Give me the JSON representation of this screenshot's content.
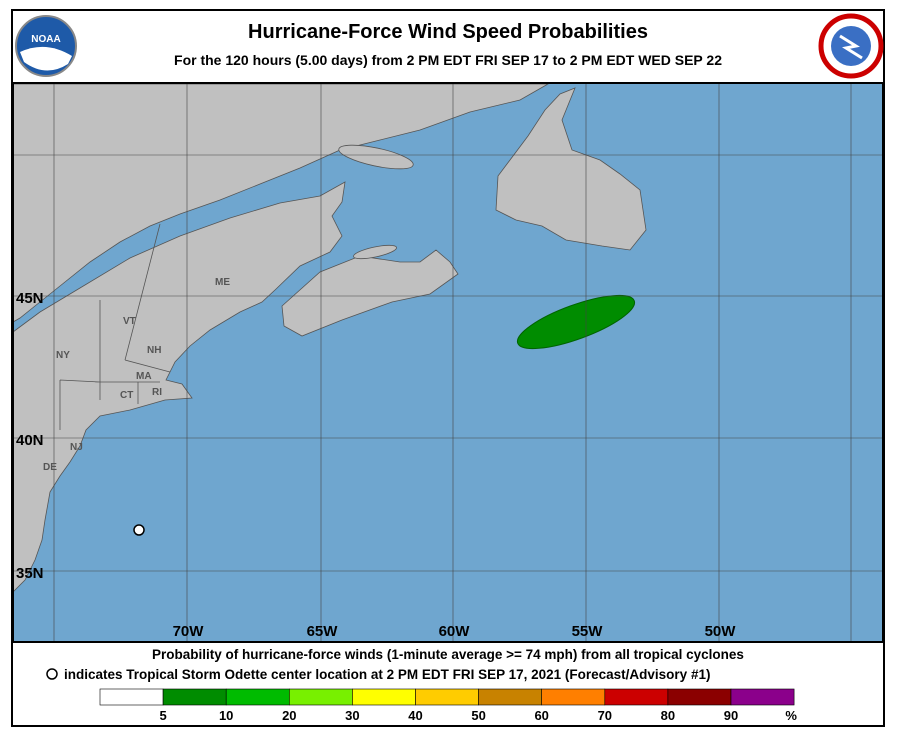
{
  "header": {
    "title": "Hurricane-Force Wind Speed Probabilities",
    "subtitle": "For the 120 hours (5.00 days) from 2 PM EDT FRI SEP 17 to 2 PM EDT WED SEP 22",
    "logo_left": "NOAA"
  },
  "map": {
    "lat_labels": [
      "45N",
      "40N",
      "35N"
    ],
    "lon_labels": [
      "70W",
      "65W",
      "60W",
      "55W",
      "50W"
    ],
    "state_labels": [
      "ME",
      "VT",
      "NH",
      "NY",
      "MA",
      "CT",
      "RI",
      "NJ",
      "DE"
    ]
  },
  "footer": {
    "line1": "Probability of hurricane-force winds (1-minute average >= 74 mph) from all tropical cyclones",
    "line2": "indicates Tropical Storm Odette center location at 2 PM EDT FRI SEP 17, 2021 (Forecast/Advisory #1)"
  },
  "legend": {
    "colors": [
      "#ffffff",
      "#008c00",
      "#00bb00",
      "#78f000",
      "#ffff00",
      "#ffcc00",
      "#c88200",
      "#ff7f00",
      "#cc0000",
      "#8b0000",
      "#8b008b"
    ],
    "labels": [
      5,
      10,
      20,
      30,
      40,
      50,
      60,
      70,
      80,
      90
    ],
    "unit": "%"
  }
}
